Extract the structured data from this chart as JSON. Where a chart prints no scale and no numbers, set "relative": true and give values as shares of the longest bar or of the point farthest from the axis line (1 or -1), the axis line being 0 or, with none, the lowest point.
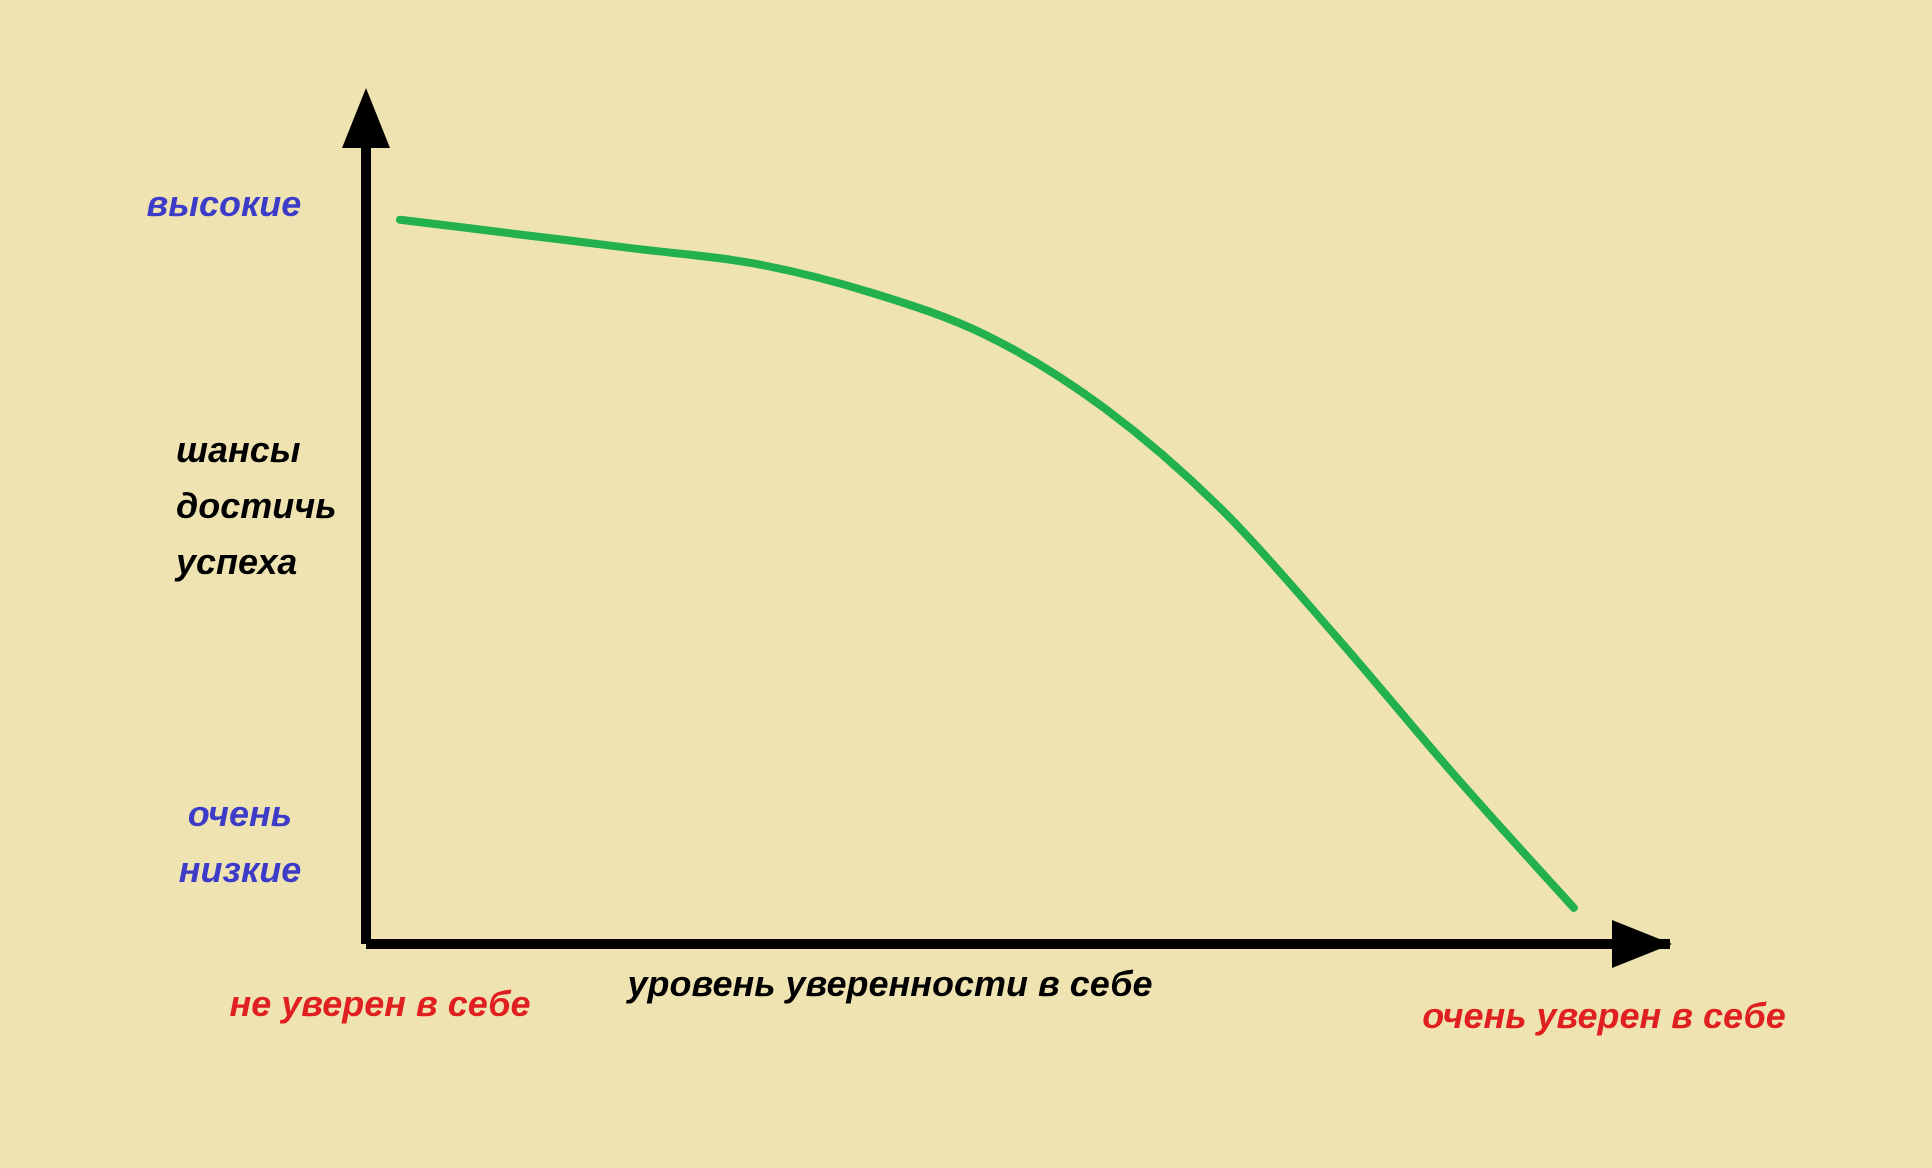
{
  "chart_data": {
    "type": "line",
    "relative": true,
    "xlabel": "уровень уверенности в себе",
    "ylabel": "шансы достичь успеха",
    "annotations": [
      "высокие",
      "очень низкие",
      "не уверен в себе",
      "очень уверен в себе"
    ],
    "categories": [
      null,
      null,
      null,
      null,
      null,
      null,
      null,
      null,
      null,
      null,
      null
    ],
    "series": [
      {
        "color": "#22b14c",
        "values": [
          1.0,
          0.98,
          0.96,
          0.94,
          0.9,
          0.84,
          0.74,
          0.6,
          0.42,
          0.23,
          0.05
        ]
      }
    ],
    "grid": false,
    "legend": false,
    "marker": "none",
    "line_style": "solid"
  }
}
